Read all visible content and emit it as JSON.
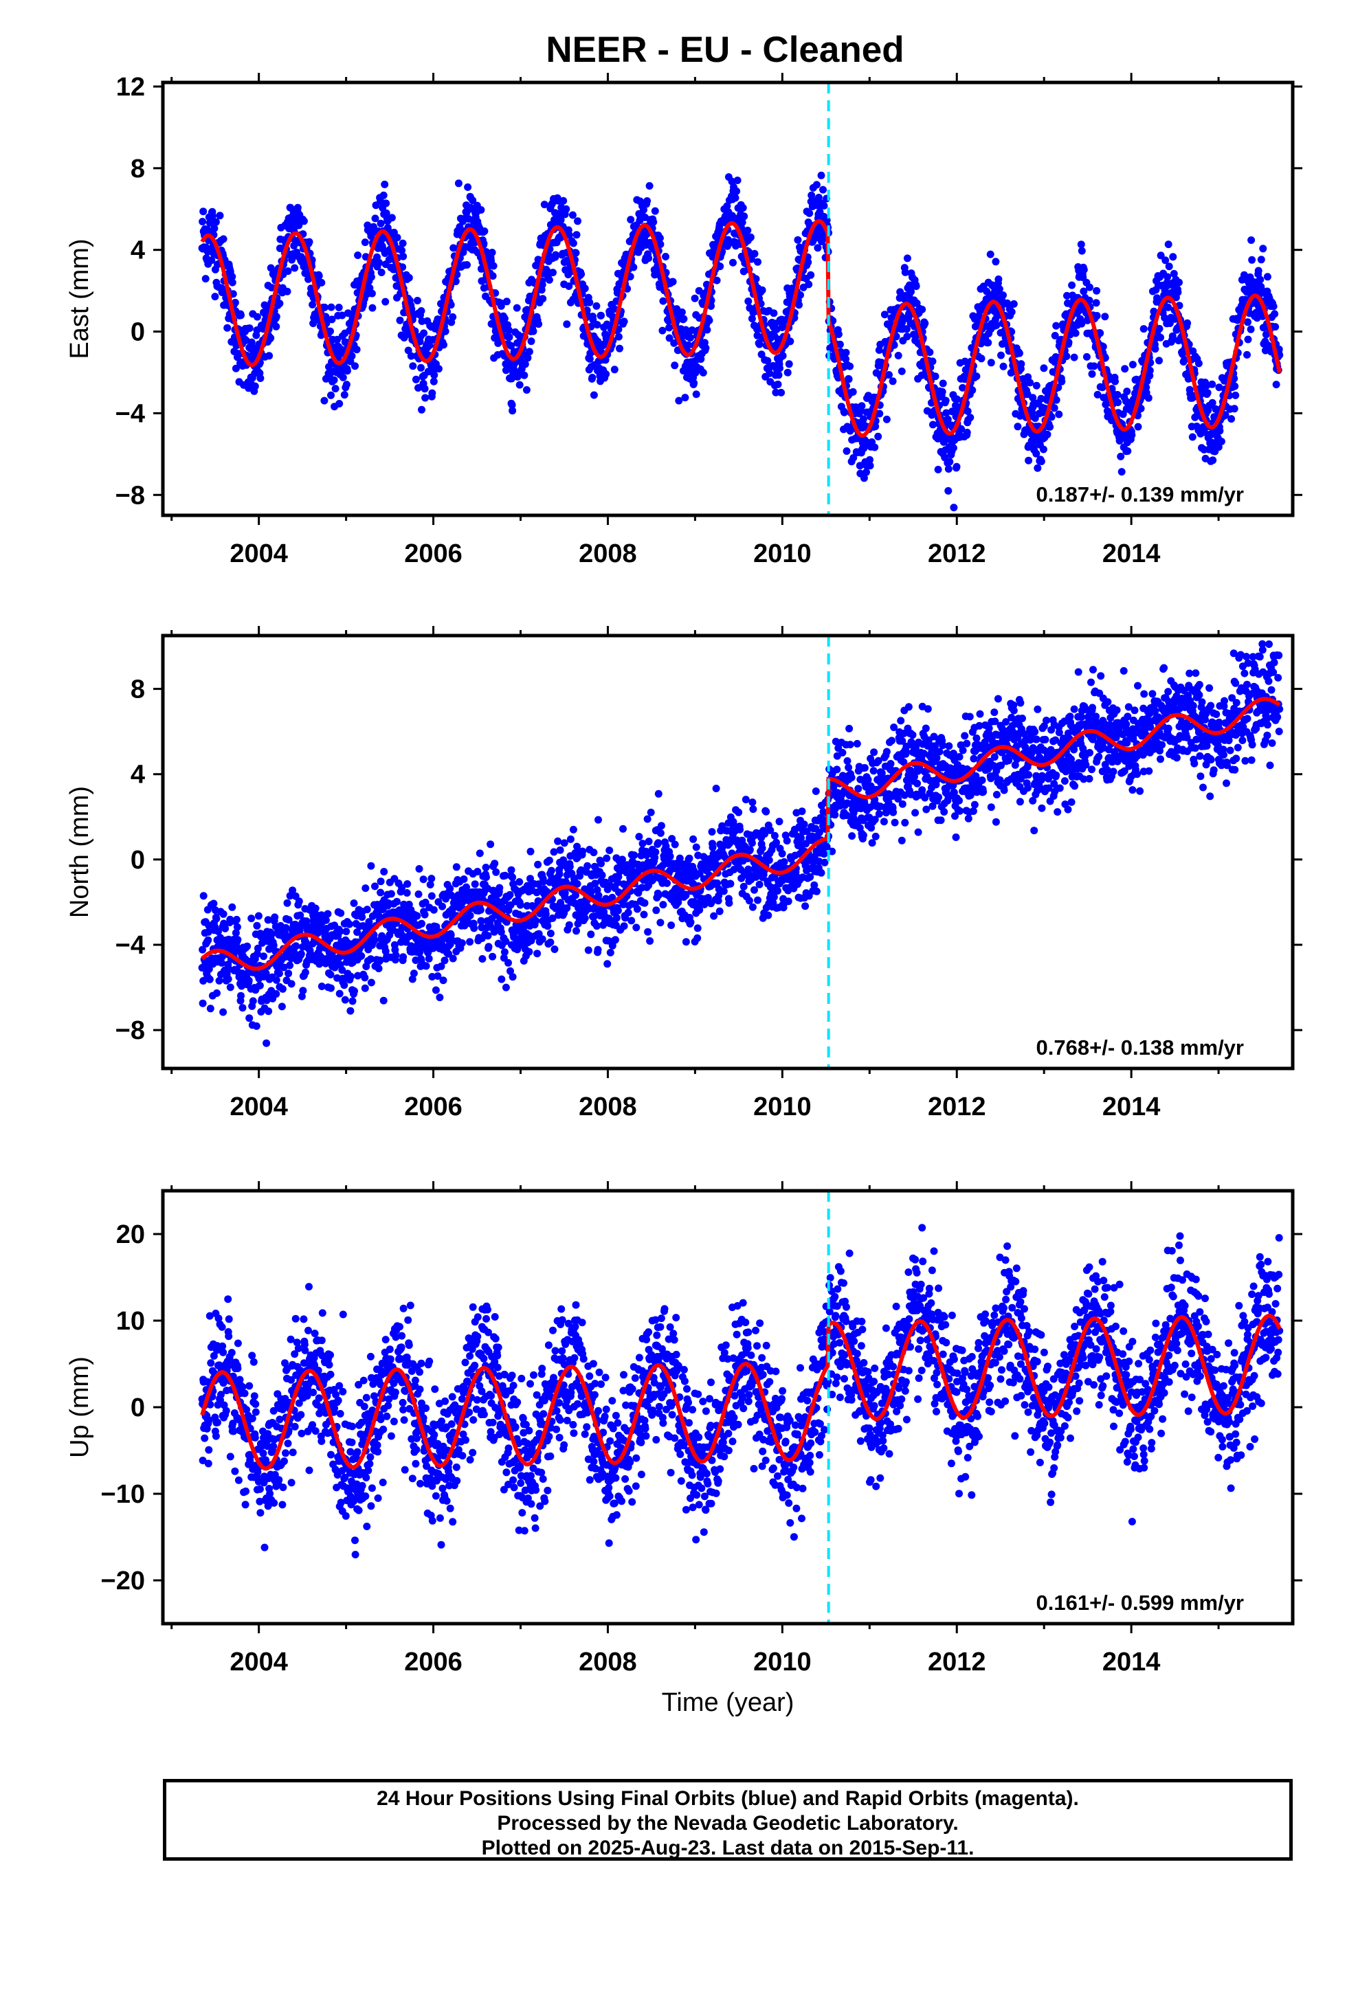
{
  "title": "NEER  - EU - Cleaned",
  "xlabel": "Time (year)",
  "footer": {
    "line1": "24 Hour Positions Using Final Orbits (blue) and Rapid Orbits (magenta).",
    "line2": "Processed by the Nevada Geodetic Laboratory.",
    "line3": "Plotted on 2025-Aug-23. Last data on 2015-Sep-11."
  },
  "colors": {
    "points": "#0000ff",
    "model": "#ff0000",
    "step_line": "#00e5ff"
  },
  "chart_data": [
    {
      "type": "scatter",
      "ylabel": "East (mm)",
      "xlim": [
        2002.9,
        2015.85
      ],
      "ylim": [
        -9,
        12.2
      ],
      "yticks": [
        -8,
        -4,
        0,
        4,
        8,
        12
      ],
      "xticks": [
        2004,
        2006,
        2008,
        2010,
        2012,
        2014
      ],
      "rate_text": "0.187+/- 0.139 mm/yr",
      "step_epoch": 2010.53,
      "model": {
        "start": 2003.35,
        "end": 2015.7,
        "offset_before": 1.5,
        "offset_after": -2.65,
        "trend": 0.1,
        "amplitude": 3.2,
        "peak_phase": 0.42,
        "noise_sd": 1.0
      },
      "series": [
        {
          "name": "Final Orbits (blue)",
          "style": "points"
        },
        {
          "name": "Model (red)",
          "style": "line"
        }
      ]
    },
    {
      "type": "scatter",
      "ylabel": "North (mm)",
      "xlim": [
        2002.9,
        2015.85
      ],
      "ylim": [
        -9.8,
        10.5
      ],
      "yticks": [
        -8,
        -4,
        0,
        4,
        8
      ],
      "xticks": [
        2004,
        2006,
        2008,
        2010,
        2012,
        2014
      ],
      "rate_text": "0.768+/- 0.138 mm/yr",
      "step_epoch": 2010.53,
      "model": {
        "start": 2003.35,
        "end": 2015.7,
        "offset_before": -5.0,
        "offset_after": -2.2,
        "trend": 0.75,
        "amplitude": 0.6,
        "peak_phase": 0.5,
        "noise_sd": 1.1
      },
      "series": [
        {
          "name": "Final Orbits (blue)",
          "style": "points"
        },
        {
          "name": "Model (red)",
          "style": "line"
        }
      ]
    },
    {
      "type": "scatter",
      "ylabel": "Up (mm)",
      "xlim": [
        2002.9,
        2015.85
      ],
      "ylim": [
        -25,
        25
      ],
      "yticks": [
        -20,
        -10,
        0,
        10,
        20
      ],
      "xticks": [
        2004,
        2006,
        2008,
        2010,
        2012,
        2014
      ],
      "rate_text": "0.161+/- 0.599 mm/yr",
      "step_epoch": 2010.53,
      "model": {
        "start": 2003.35,
        "end": 2015.7,
        "offset_before": -1.6,
        "offset_after": 3.0,
        "trend": 0.16,
        "amplitude": 5.6,
        "peak_phase": 0.58,
        "noise_sd": 3.8
      },
      "series": [
        {
          "name": "Final Orbits (blue)",
          "style": "points"
        },
        {
          "name": "Model (red)",
          "style": "line"
        }
      ]
    }
  ]
}
